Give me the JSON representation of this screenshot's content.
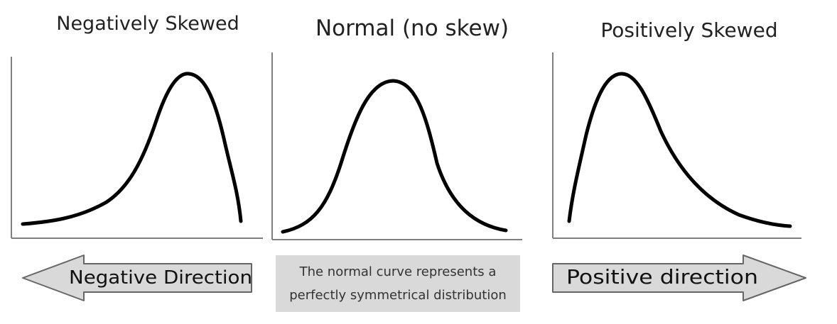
{
  "panels": [
    {
      "title": "Negatively Skewed"
    },
    {
      "title": "Normal (no skew)"
    },
    {
      "title": "Positively Skewed"
    }
  ],
  "arrows": {
    "negative": {
      "label": "Negative Direction",
      "fill": "#d9d9d9"
    },
    "positive": {
      "label": "Positive direction",
      "fill": "#d9d9d9"
    }
  },
  "caption": {
    "line1": "The normal curve represents a",
    "line2": "perfectly symmetrical distribution",
    "background": "#d9d9d9"
  },
  "colors": {
    "curve": "#000000",
    "axis": "#7f7f7f",
    "arrow_stroke": "#666666"
  }
}
